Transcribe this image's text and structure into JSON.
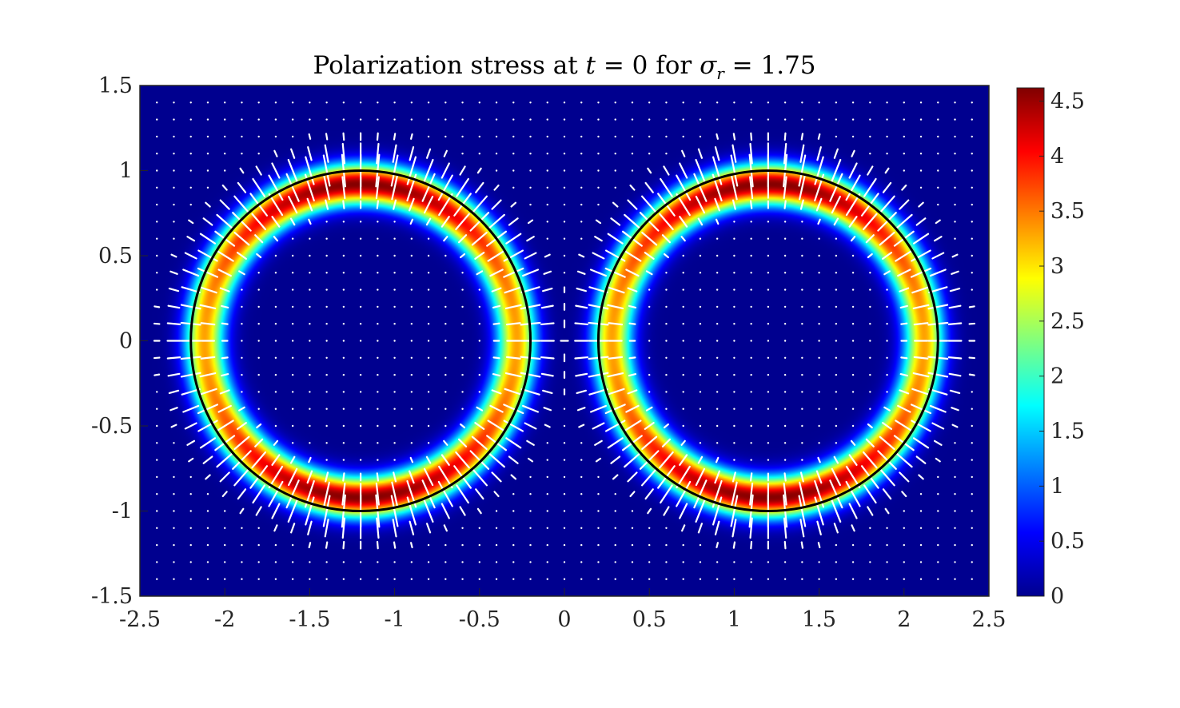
{
  "chart_data": {
    "type": "heatmap",
    "title": {
      "prefix": "Polarization stress at ",
      "t_var": "t",
      "t_expr": " = 0 for ",
      "sigma_var": "σ",
      "sigma_sub": "r",
      "sigma_expr": " = 1.75"
    },
    "xlabel": "",
    "ylabel": "",
    "xlim": [
      -2.5,
      2.5
    ],
    "ylim": [
      -1.5,
      1.5
    ],
    "x_ticks": [
      "-2.5",
      "-2",
      "-1.5",
      "-1",
      "-0.5",
      "0",
      "0.5",
      "1",
      "1.5",
      "2",
      "2.5"
    ],
    "y_ticks": [
      "1.5",
      "1",
      "0.5",
      "0",
      "-0.5",
      "-1",
      "-1.5"
    ],
    "colorbar": {
      "range": [
        0,
        4.62
      ],
      "colormap": "jet",
      "ticks": [
        "0",
        "0.5",
        "1",
        "1.5",
        "2",
        "2.5",
        "3",
        "3.5",
        "4",
        "4.5"
      ]
    },
    "drops": [
      {
        "cx": -1.2,
        "cy": 0,
        "r": 1.0
      },
      {
        "cx": 1.2,
        "cy": 0,
        "r": 1.0
      }
    ],
    "field": {
      "peak_value": 4.6,
      "ring_offset": -0.08,
      "ring_width": 0.12,
      "vertical_peak_ratio": 1.0,
      "horizontal_peak_ratio": 0.72
    },
    "quiver": {
      "color": "#ffffff",
      "direction": "normal to interface"
    },
    "interface_color": "#000000",
    "background_color": "#00008f"
  }
}
